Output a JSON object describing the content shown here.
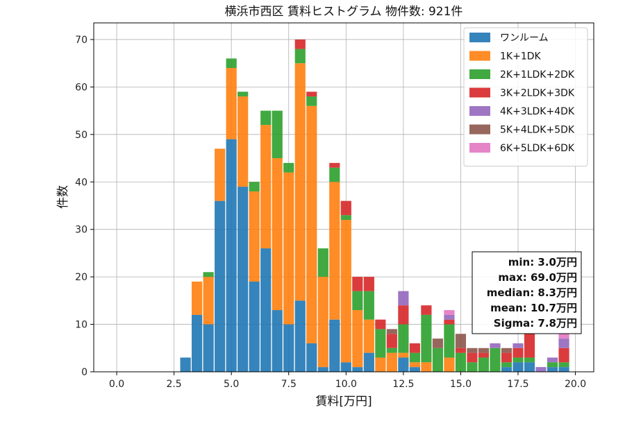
{
  "chart_data": {
    "type": "bar",
    "stacked": true,
    "title": "横浜市西区 賃料ヒストグラム  物件数: 921件",
    "xlabel": "賃料[万円]",
    "ylabel": "件数",
    "xlim": [
      -1.0,
      20.8
    ],
    "ylim": [
      0,
      73.5
    ],
    "xticks": [
      0.0,
      2.5,
      5.0,
      7.5,
      10.0,
      12.5,
      15.0,
      17.5,
      20.0
    ],
    "xtick_labels": [
      "0.0",
      "2.5",
      "5.0",
      "7.5",
      "10.0",
      "12.5",
      "15.0",
      "17.5",
      "20.0"
    ],
    "yticks": [
      0,
      10,
      20,
      30,
      40,
      50,
      60,
      70
    ],
    "ytick_labels": [
      "0",
      "10",
      "20",
      "30",
      "40",
      "50",
      "60",
      "70"
    ],
    "grid": true,
    "legend_position": "top-right",
    "bin_width": 0.5,
    "bin_starts": [
      2.75,
      3.25,
      3.75,
      4.25,
      4.75,
      5.25,
      5.75,
      6.25,
      6.75,
      7.25,
      7.75,
      8.25,
      8.75,
      9.25,
      9.75,
      10.25,
      10.75,
      11.25,
      11.75,
      12.25,
      12.75,
      13.25,
      13.75,
      14.25,
      14.75,
      15.25,
      15.75,
      16.25,
      16.75,
      17.25,
      17.75,
      18.25,
      18.75,
      19.25
    ],
    "series": [
      {
        "name": "ワンルーム",
        "color": "#1f77b4",
        "values": [
          3,
          12,
          10,
          36,
          49,
          39,
          19,
          26,
          13,
          10,
          15,
          6,
          1,
          11,
          2,
          1,
          4,
          0,
          0,
          3,
          1,
          0,
          0,
          0,
          0,
          0,
          0,
          0,
          1,
          2,
          2,
          0,
          1,
          1
        ]
      },
      {
        "name": "1K+1DK",
        "color": "#ff7f0e",
        "values": [
          0,
          7,
          10,
          11,
          15,
          19,
          19,
          26,
          32,
          32,
          50,
          50,
          19,
          29,
          30,
          12,
          7,
          3,
          4,
          1,
          1,
          2,
          0,
          3,
          0,
          0,
          0,
          0,
          0,
          0,
          0,
          0,
          0,
          0
        ]
      },
      {
        "name": "2K+1LDK+2DK",
        "color": "#2ca02c",
        "values": [
          0,
          0,
          1,
          0,
          2,
          1,
          2,
          3,
          10,
          2,
          3,
          2,
          6,
          3,
          1,
          4,
          6,
          6,
          1,
          6,
          2,
          10,
          5,
          7,
          4,
          2,
          3,
          5,
          1,
          1,
          1,
          0,
          1,
          1
        ]
      },
      {
        "name": "3K+2LDK+3DK",
        "color": "#d62728",
        "values": [
          0,
          0,
          0,
          0,
          0,
          0,
          0,
          0,
          0,
          0,
          2,
          1,
          0,
          1,
          3,
          3,
          3,
          2,
          3,
          4,
          2,
          2,
          0,
          1,
          1,
          2,
          1,
          0,
          2,
          2,
          5,
          0,
          0,
          3
        ]
      },
      {
        "name": "4K+3LDK+4DK",
        "color": "#9467bd",
        "values": [
          0,
          0,
          0,
          0,
          0,
          0,
          0,
          0,
          0,
          0,
          0,
          0,
          0,
          0,
          0,
          0,
          0,
          0,
          0,
          3,
          0,
          0,
          0,
          1,
          0,
          0,
          0,
          1,
          0,
          1,
          0,
          1,
          1,
          2
        ]
      },
      {
        "name": "5K+4LDK+5DK",
        "color": "#8c564b",
        "values": [
          0,
          0,
          0,
          0,
          0,
          0,
          0,
          0,
          0,
          0,
          0,
          0,
          0,
          0,
          0,
          0,
          0,
          0,
          1,
          0,
          0,
          0,
          2,
          0,
          3,
          1,
          1,
          0,
          1,
          0,
          0,
          0,
          0,
          0
        ]
      },
      {
        "name": "6K+5LDK+6DK",
        "color": "#e377c2",
        "values": [
          0,
          0,
          0,
          0,
          0,
          0,
          0,
          0,
          0,
          0,
          0,
          0,
          0,
          0,
          0,
          0,
          0,
          0,
          0,
          0,
          0,
          0,
          0,
          1,
          0,
          0,
          0,
          0,
          0,
          0,
          0,
          0,
          0,
          1
        ]
      }
    ],
    "stats": {
      "min": "min: 3.0万円",
      "max": "max: 69.0万円",
      "median": "median: 8.3万円",
      "mean": "mean: 10.7万円",
      "sigma": "Sigma: 7.8万円"
    }
  }
}
